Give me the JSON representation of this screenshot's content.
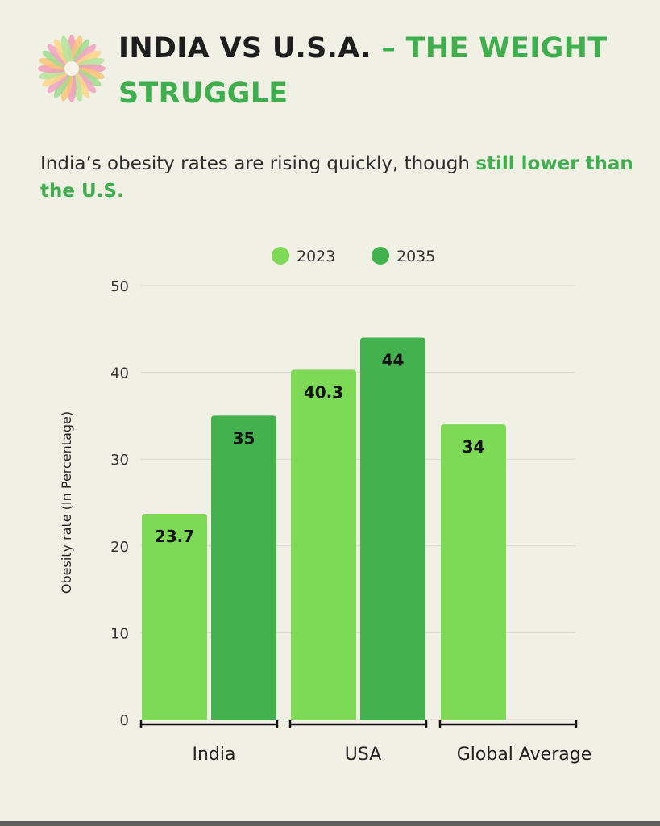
{
  "header": {
    "title_part1": "INDIA VS U.S.A.",
    "title_part2": " – THE WEIGHT STRUGGLE",
    "subtitle_part1": "India’s obesity rates are rising quickly, though ",
    "subtitle_part2": "still lower than the U.S."
  },
  "colors": {
    "series_2023": "#7ed957",
    "series_2035": "#42b14e",
    "accent": "#3fae4f",
    "background": "#f1f0e5"
  },
  "chart_data": {
    "type": "bar",
    "title": "",
    "ylabel": "Obesity rate (In Percentage)",
    "xlabel": "",
    "ylim": [
      0,
      50
    ],
    "yticks": [
      0,
      10,
      20,
      30,
      40,
      50
    ],
    "grid": true,
    "legend": "top",
    "categories": [
      "India",
      "USA",
      "Global Average"
    ],
    "series": [
      {
        "name": "2023",
        "values": [
          23.7,
          40.3,
          34
        ]
      },
      {
        "name": "2035",
        "values": [
          35,
          44,
          null
        ]
      }
    ]
  }
}
